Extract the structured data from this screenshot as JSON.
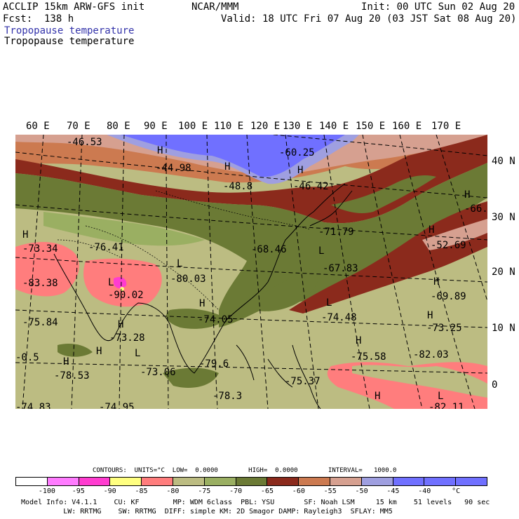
{
  "header": {
    "model": "ACCLIP 15km ARW-GFS init",
    "org": "NCAR/MMM",
    "init": "Init: 00 UTC Sun 02 Aug 20",
    "fcst": "Fcst:  138 h",
    "valid": "Valid: 18 UTC Fri 07 Aug 20 (03 JST Sat 08 Aug 20)",
    "field_title_colored": "Tropopause temperature",
    "field_title": "Tropopause temperature",
    "title_color": "#3333aa"
  },
  "lon_labels": [
    "60 E",
    "70 E",
    "80 E",
    "90 E",
    "100 E",
    "110 E",
    "120 E",
    "130 E",
    "140 E",
    "150 E",
    "160 E",
    "170 E"
  ],
  "lat_labels": [
    "40 N",
    "30 N",
    "20 N",
    "10 N",
    "0"
  ],
  "map_labels": [
    {
      "t": "-46.53"
    },
    {
      "t": "-60.25"
    },
    {
      "t": "H"
    },
    {
      "t": "-44.98"
    },
    {
      "t": "H"
    },
    {
      "t": "-48.8"
    },
    {
      "t": "H"
    },
    {
      "t": "-46.42"
    },
    {
      "t": "H"
    },
    {
      "t": "-66."
    },
    {
      "t": "-71.79"
    },
    {
      "t": "H"
    },
    {
      "t": "-52.69"
    },
    {
      "t": "H"
    },
    {
      "t": "-73.34"
    },
    {
      "t": "-76.41"
    },
    {
      "t": "-68.46"
    },
    {
      "t": "L"
    },
    {
      "t": "-67.83"
    },
    {
      "t": "L"
    },
    {
      "t": "-80.03"
    },
    {
      "t": "-83.38"
    },
    {
      "t": "H"
    },
    {
      "t": "-69.89"
    },
    {
      "t": "-90.02"
    },
    {
      "t": "H"
    },
    {
      "t": "L"
    },
    {
      "t": "H"
    },
    {
      "t": "-74.05"
    },
    {
      "t": "L"
    },
    {
      "t": "-74.48"
    },
    {
      "t": "H"
    },
    {
      "t": "-73.25"
    },
    {
      "t": "-75.84"
    },
    {
      "t": "H"
    },
    {
      "t": "-73.28"
    },
    {
      "t": "H"
    },
    {
      "t": "-75.58"
    },
    {
      "t": "-0.5"
    },
    {
      "t": "H"
    },
    {
      "t": "L"
    },
    {
      "t": "-73.06"
    },
    {
      "t": "-79.6"
    },
    {
      "t": "-82.03"
    },
    {
      "t": "-78.53"
    },
    {
      "t": "-75.37"
    },
    {
      "t": "-78.3"
    },
    {
      "t": "H"
    },
    {
      "t": "L"
    },
    {
      "t": "-74.83"
    },
    {
      "t": "-74.95"
    },
    {
      "t": "-82.11"
    }
  ],
  "contours_line": "CONTOURS:  UNITS=°C  LOW=  0.0000        HIGH=  0.0000        INTERVAL=   1000.0",
  "colorbar": {
    "colors": [
      "#ffffff",
      "#ff7bff",
      "#ff3cd0",
      "#ffff80",
      "#ff7d7d",
      "#bcbc82",
      "#9aaf62",
      "#6b7a35",
      "#8b2a1c",
      "#cc7a50",
      "#d6a090",
      "#9f9fe0",
      "#7070ff",
      "#7070ff",
      "#7070ff"
    ],
    "labels": [
      "-100",
      "-95",
      "-90",
      "-85",
      "-80",
      "-75",
      "-70",
      "-65",
      "-60",
      "-55",
      "-50",
      "-45",
      "-40",
      "°C"
    ]
  },
  "footer": {
    "line1": "Model Info: V4.1.1    CU: KF        MP: WDM 6class  PBL: YSU       SF: Noah LSM     15 km    51 levels   90 sec",
    "line2": "          LW: RRTMG    SW: RRTMG  DIFF: simple KM: 2D Smagor DAMP: Rayleigh3  SFLAY: MM5"
  }
}
